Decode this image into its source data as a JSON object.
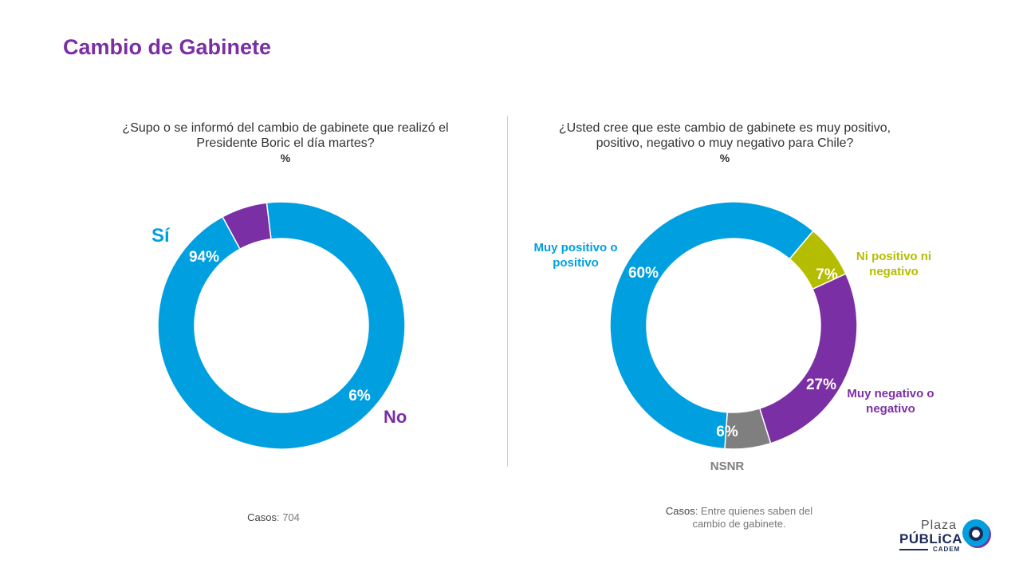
{
  "title": "Cambio de Gabinete",
  "chart_data": [
    {
      "type": "pie",
      "question": "¿Supo o se informó del cambio de gabinete que realizó el Presidente Boric el día martes?",
      "unit": "%",
      "categories": [
        "Sí",
        "No"
      ],
      "values": [
        94,
        6
      ],
      "labels": [
        "94%",
        "6%"
      ],
      "colors": [
        "#009fe0",
        "#7b2fa4"
      ],
      "footnote_label": "Casos",
      "footnote_text": ": 704"
    },
    {
      "type": "pie",
      "question": "¿Usted cree que este cambio de gabinete es muy positivo, positivo, negativo o muy negativo para Chile?",
      "unit": "%",
      "categories": [
        "Muy positivo o positivo",
        "Ni positivo ni negativo",
        "Muy negativo o negativo",
        "NSNR"
      ],
      "values": [
        60,
        7,
        27,
        6
      ],
      "labels": [
        "60%",
        "7%",
        "27%",
        "6%"
      ],
      "colors": [
        "#009fe0",
        "#b5bd00",
        "#7b2fa4",
        "#7f7f7f"
      ],
      "footnote_label": "Casos",
      "footnote_text": ": Entre quienes saben del cambio de gabinete."
    }
  ],
  "logo": {
    "line1": "Plaza",
    "line2": "PÚBLiCA",
    "line3": "CADEM"
  }
}
